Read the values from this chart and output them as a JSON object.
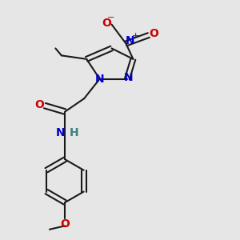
{
  "bg_color": "#e6e6e6",
  "bond_color": "#1a1a1a",
  "bond_width": 1.5,
  "figsize": [
    3.0,
    3.0
  ],
  "dpi": 100,
  "colors": {
    "N": "#0000cc",
    "O": "#cc0000",
    "H": "#408080",
    "C": "#1a1a1a"
  },
  "font_size": 10
}
